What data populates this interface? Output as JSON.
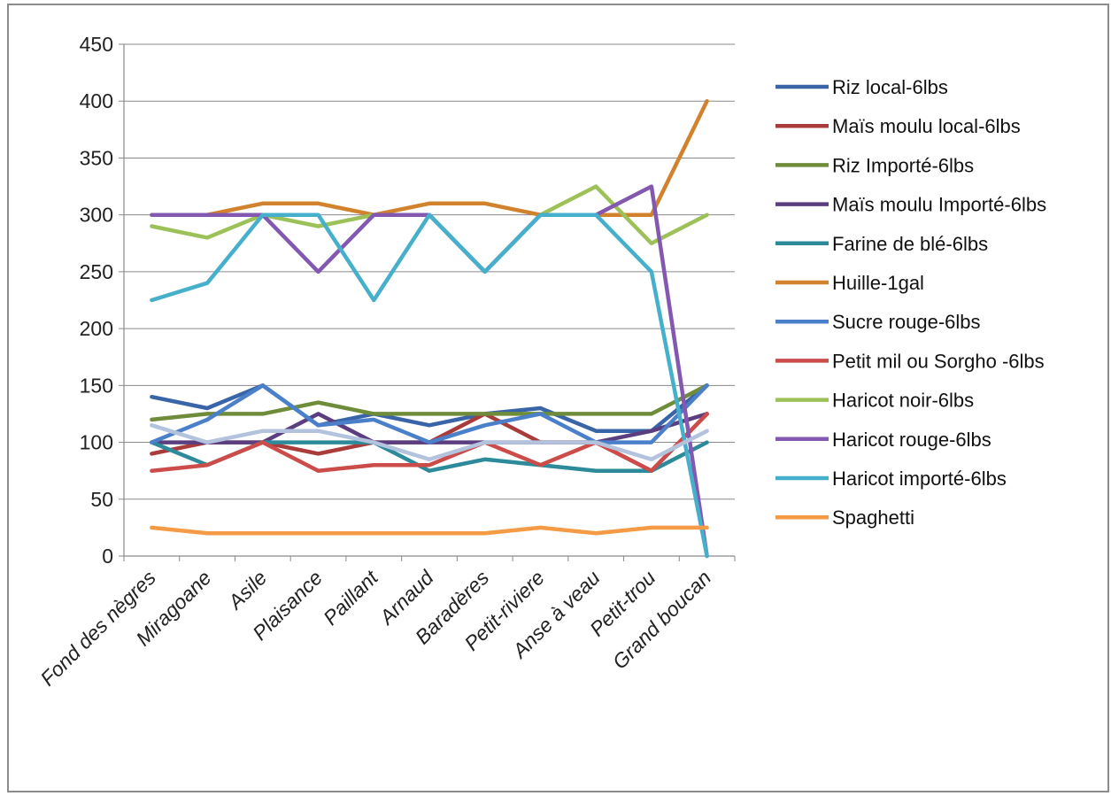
{
  "chart_data": {
    "type": "line",
    "title": "",
    "xlabel": "",
    "ylabel": "",
    "ylim": [
      0,
      450
    ],
    "yticks": [
      0,
      50,
      100,
      150,
      200,
      250,
      300,
      350,
      400,
      450
    ],
    "grid": "horizontal",
    "legend_position": "right",
    "categories": [
      "Fond des nègres",
      "Miragoane",
      "Asile",
      "Plaisance",
      "Paillant",
      "Arnaud",
      "Baradères",
      "Petit-riviere",
      "Anse à veau",
      "Petit-trou",
      "Grand boucan"
    ],
    "series": [
      {
        "name": "Riz local-6lbs",
        "color": "#3a64a8",
        "values": [
          140,
          130,
          150,
          115,
          125,
          115,
          125,
          130,
          110,
          110,
          150
        ]
      },
      {
        "name": "Maïs moulu local-6lbs",
        "color": "#a93c3a",
        "values": [
          90,
          100,
          100,
          90,
          100,
          100,
          125,
          100,
          100,
          75,
          125
        ]
      },
      {
        "name": "Riz Importé-6lbs",
        "color": "#6e8c3a",
        "values": [
          120,
          125,
          125,
          135,
          125,
          125,
          125,
          125,
          125,
          125,
          150
        ]
      },
      {
        "name": "Maïs moulu Importé-6lbs",
        "color": "#5b3e80",
        "values": [
          100,
          100,
          100,
          125,
          100,
          100,
          100,
          100,
          100,
          110,
          125
        ]
      },
      {
        "name": "Farine de blé-6lbs",
        "color": "#2c8a9a",
        "values": [
          100,
          80,
          100,
          100,
          100,
          75,
          85,
          80,
          75,
          75,
          100
        ]
      },
      {
        "name": "Huille-1gal",
        "color": "#d2822d",
        "values": [
          300,
          300,
          310,
          310,
          300,
          310,
          310,
          300,
          300,
          300,
          400
        ]
      },
      {
        "name": "Sucre rouge-6lbs",
        "color": "#4a7fc9",
        "values": [
          100,
          120,
          150,
          115,
          120,
          100,
          115,
          125,
          100,
          100,
          150
        ]
      },
      {
        "name": "Petit mil ou Sorgho -6lbs",
        "color": "#cc4c4a",
        "values": [
          75,
          80,
          100,
          75,
          80,
          80,
          100,
          80,
          100,
          75,
          125
        ]
      },
      {
        "name": "Haricot noir-6lbs",
        "color": "#9cc158",
        "values": [
          290,
          280,
          300,
          290,
          300,
          300,
          250,
          300,
          325,
          275,
          300
        ]
      },
      {
        "name": "Haricot rouge-6lbs",
        "color": "#8258b0",
        "values": [
          300,
          300,
          300,
          250,
          300,
          300,
          250,
          300,
          300,
          325,
          0
        ]
      },
      {
        "name": "Haricot importé-6lbs",
        "color": "#46b0cc",
        "values": [
          225,
          240,
          300,
          300,
          225,
          300,
          250,
          300,
          300,
          250,
          0
        ]
      },
      {
        "name": "Spaghetti",
        "color": "#f59a45",
        "values": [
          25,
          20,
          20,
          20,
          20,
          20,
          20,
          25,
          20,
          25,
          25
        ]
      },
      {
        "name": "",
        "color": "#b3c3de",
        "values": [
          115,
          100,
          110,
          110,
          100,
          85,
          100,
          100,
          100,
          85,
          110
        ]
      }
    ]
  }
}
